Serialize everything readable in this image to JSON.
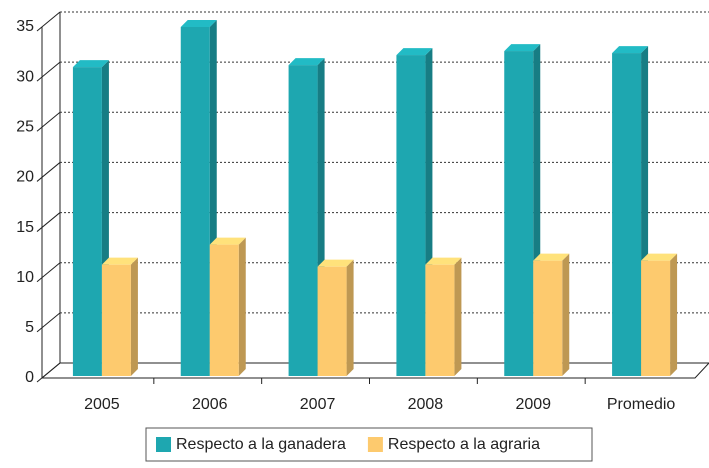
{
  "chart_data": {
    "type": "bar3d",
    "categories": [
      "2005",
      "2006",
      "2007",
      "2008",
      "2009",
      "Promedio"
    ],
    "series": [
      {
        "name": "Respecto a la ganadera",
        "color": "#1ea7b0",
        "values": [
          31,
          35,
          31.2,
          32.2,
          32.6,
          32.4
        ]
      },
      {
        "name": "Respecto a la agraria",
        "color": "#fdca6e",
        "values": [
          11.3,
          13.3,
          11.1,
          11.3,
          11.7,
          11.7
        ]
      }
    ],
    "ylim": [
      0,
      35
    ],
    "yticks": [
      0,
      5,
      10,
      15,
      20,
      25,
      30,
      35
    ],
    "grid": true,
    "legend": "bottom"
  }
}
